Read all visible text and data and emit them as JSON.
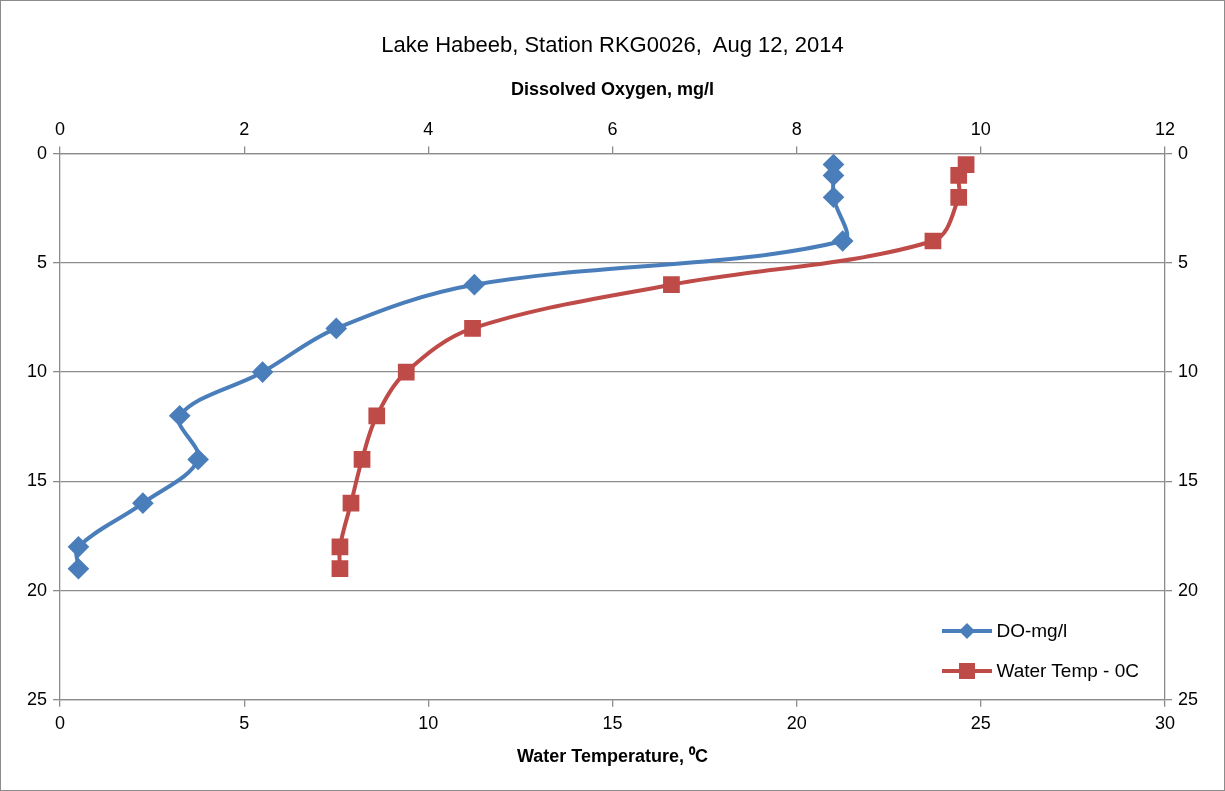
{
  "chart_data": {
    "type": "line",
    "title": "Lake Habeeb, Station RKG0026,  Aug 12, 2014",
    "xlabel": "Water Temperature, ⁰C",
    "x2label": "Dissolved Oxygen, mg/l",
    "xlim": [
      0,
      30
    ],
    "xticks": [
      0,
      5,
      10,
      15,
      20,
      25,
      30
    ],
    "x2lim": [
      0,
      12
    ],
    "x2ticks": [
      0,
      2,
      4,
      6,
      8,
      10,
      12
    ],
    "ylim": [
      25,
      0
    ],
    "yticks": [
      0,
      5,
      10,
      15,
      20,
      25
    ],
    "y2lim": [
      25,
      0
    ],
    "y2ticks": [
      0,
      5,
      10,
      15,
      20,
      25
    ],
    "grid": "y",
    "legend": "bottom right",
    "series": [
      {
        "name": "DO-mg/l",
        "color": "#4a7ebb",
        "axis": "x2",
        "marker": "diamond",
        "x": [
          8.4,
          8.4,
          8.4,
          8.5,
          4.5,
          3.0,
          2.2,
          1.3,
          1.5,
          0.9,
          0.2,
          0.2
        ],
        "values": [
          0.5,
          1,
          2,
          4,
          6,
          8,
          10,
          12,
          14,
          16,
          18,
          19
        ]
      },
      {
        "name": "Water Temp - 0C",
        "color": "#be4b48",
        "marker": "square",
        "x": [
          24.6,
          24.4,
          24.4,
          23.7,
          16.6,
          11.2,
          9.4,
          8.6,
          8.2,
          7.9,
          7.6,
          7.6
        ],
        "values": [
          0.5,
          1,
          2,
          4,
          6,
          8,
          10,
          12,
          14,
          16,
          18,
          19
        ]
      }
    ]
  }
}
